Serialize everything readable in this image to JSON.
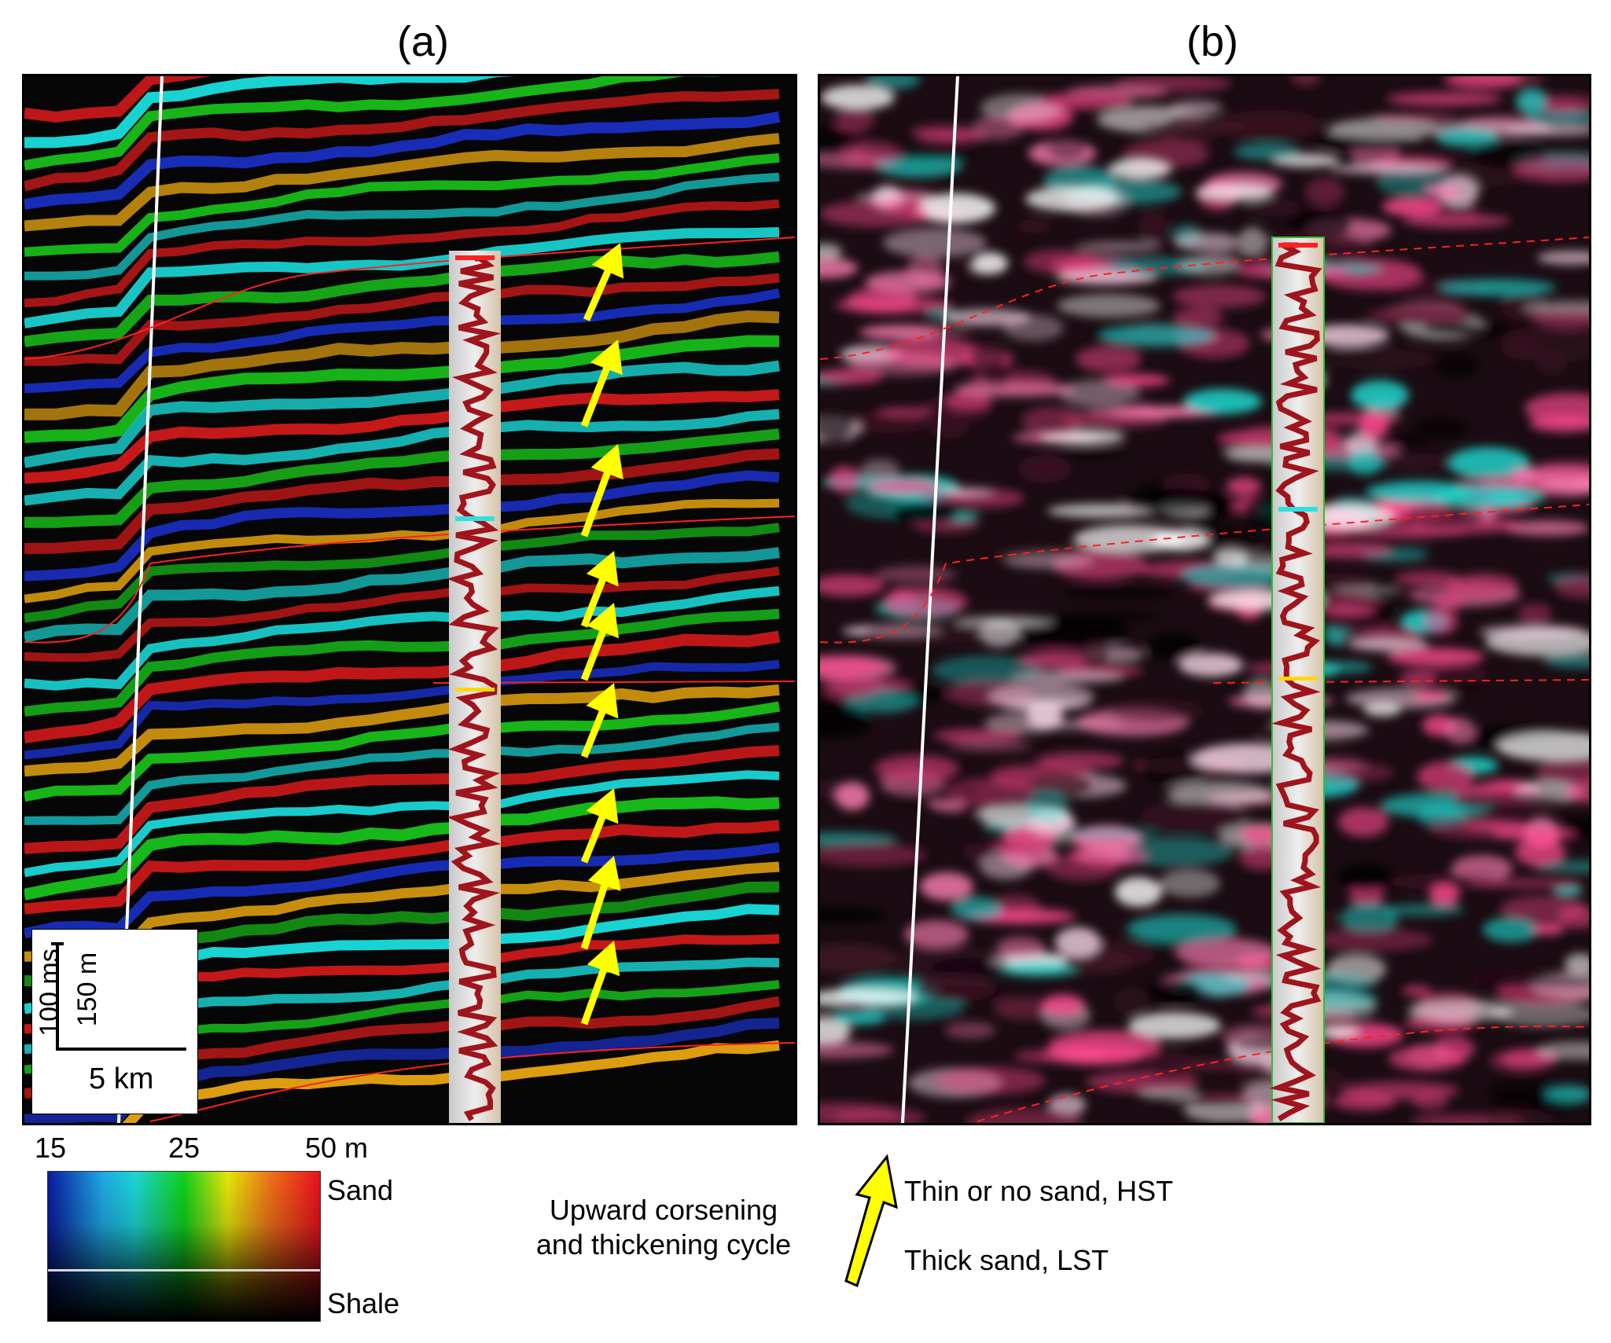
{
  "figure": {
    "panel_a": {
      "label": "(a)"
    },
    "panel_b": {
      "label": "(b)"
    },
    "scale_bar": {
      "time": "100 ms",
      "depth": "150 m",
      "distance": "5 km"
    },
    "colorbar": {
      "ticks": [
        "15",
        "25",
        "50 m"
      ],
      "top_label": "Sand",
      "bottom_label": "Shale"
    },
    "arrow_legend": {
      "description_line1": "Upward corsening",
      "description_line2": "and thickening cycle",
      "top_label": "Thin or no sand, HST",
      "bottom_label": "Thick sand, LST"
    },
    "colors": {
      "arrow": "#ffff00",
      "horizon": "#ff0000",
      "well_log": "#a0141c",
      "fault": "#ffffff"
    }
  }
}
